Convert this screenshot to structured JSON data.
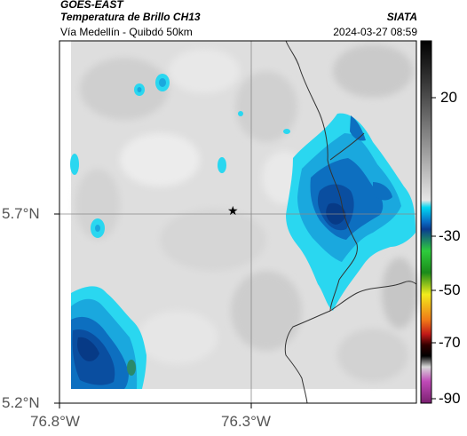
{
  "header": {
    "satellite": "GOES-EAST",
    "product": "Temperatura de Brillo CH13",
    "organization": "SIATA",
    "location": "Vía Medellín - Quibdó 50km",
    "timestamp": "2024-03-27 08:59"
  },
  "map": {
    "y_ticks": [
      "5.7°N",
      "5.2°N"
    ],
    "x_ticks": [
      "76.8°W",
      "76.3°W"
    ],
    "marker_symbol": "★"
  },
  "colorbar": {
    "ticks": [
      "20",
      "-30",
      "-50",
      "-70",
      "-90"
    ],
    "colors": {
      "warm_top": "#000000",
      "gray": "#c8c8c8",
      "cyan": "#1fd2ee",
      "blue": "#0a5fb4",
      "green": "#2ecc3c",
      "yellow": "#f2ec1c",
      "red": "#e0281c",
      "magenta": "#c04ab8"
    }
  },
  "colors": {
    "cloud_light": "#4be1f6",
    "cloud_mid": "#1f9fdc",
    "cloud_deep": "#0b5bb0",
    "cloud_core": "#063a8a"
  }
}
